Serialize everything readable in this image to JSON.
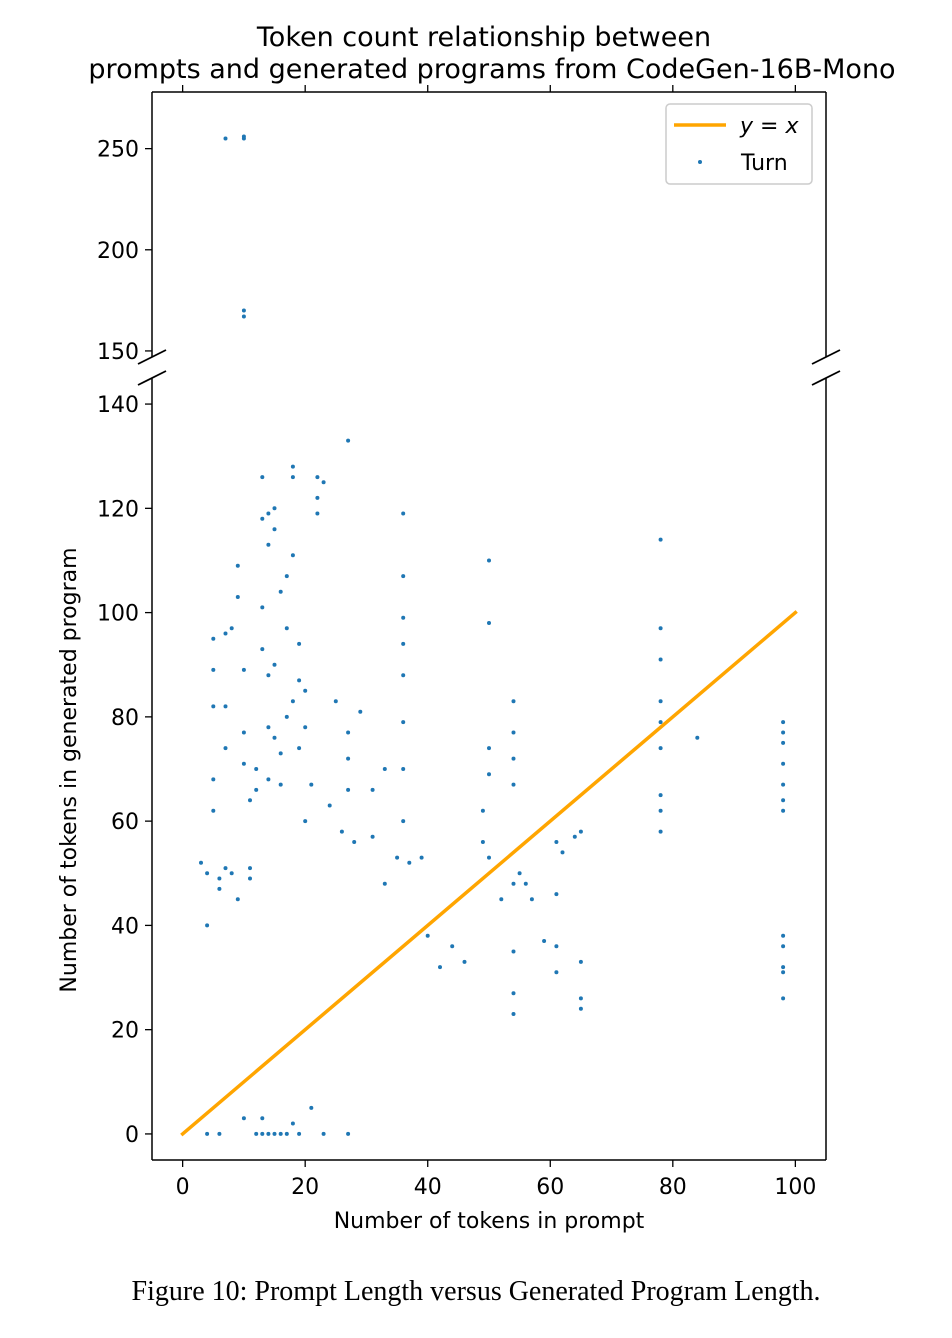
{
  "caption": "Figure 10: Prompt Length versus Generated Program Length.",
  "colors": {
    "scatter": "#1f77b4",
    "line": "#ffa500"
  },
  "chart_data": {
    "type": "scatter",
    "title_line1": "Token count relationship between",
    "title_line2": "prompts and generated programs from CodeGen-16B-Mono",
    "xlabel": "Number of tokens in prompt",
    "ylabel": "Number of tokens in generated program",
    "xlim": [
      -5,
      105
    ],
    "ylim_lower": [
      -5,
      145
    ],
    "ylim_upper": [
      147,
      278
    ],
    "broken_y_axis": true,
    "xticks": [
      0,
      20,
      40,
      60,
      80,
      100
    ],
    "yticks_lower": [
      0,
      20,
      40,
      60,
      80,
      100,
      120,
      140
    ],
    "yticks_upper": [
      150,
      200,
      250
    ],
    "legend": {
      "position": "top-right",
      "line_label": "y = x",
      "scatter_label": "Turn"
    },
    "line": {
      "name": "y = x",
      "x": [
        0,
        100
      ],
      "y": [
        0,
        100
      ]
    },
    "series": [
      {
        "name": "Turn",
        "points": [
          [
            7,
            255
          ],
          [
            10,
            256
          ],
          [
            10,
            255
          ],
          [
            10,
            170
          ],
          [
            10,
            167
          ],
          [
            3,
            52
          ],
          [
            4,
            40
          ],
          [
            4,
            50
          ],
          [
            5,
            62
          ],
          [
            5,
            95
          ],
          [
            5,
            89
          ],
          [
            5,
            82
          ],
          [
            5,
            68
          ],
          [
            6,
            49
          ],
          [
            6,
            47
          ],
          [
            7,
            51
          ],
          [
            7,
            96
          ],
          [
            7,
            82
          ],
          [
            7,
            74
          ],
          [
            8,
            97
          ],
          [
            8,
            50
          ],
          [
            9,
            45
          ],
          [
            9,
            109
          ],
          [
            9,
            103
          ],
          [
            10,
            89
          ],
          [
            10,
            77
          ],
          [
            10,
            71
          ],
          [
            11,
            64
          ],
          [
            11,
            51
          ],
          [
            11,
            49
          ],
          [
            12,
            70
          ],
          [
            12,
            66
          ],
          [
            13,
            126
          ],
          [
            13,
            118
          ],
          [
            13,
            101
          ],
          [
            13,
            93
          ],
          [
            14,
            119
          ],
          [
            14,
            113
          ],
          [
            14,
            88
          ],
          [
            14,
            78
          ],
          [
            14,
            68
          ],
          [
            15,
            120
          ],
          [
            15,
            116
          ],
          [
            15,
            90
          ],
          [
            15,
            76
          ],
          [
            16,
            104
          ],
          [
            16,
            73
          ],
          [
            16,
            67
          ],
          [
            17,
            107
          ],
          [
            17,
            97
          ],
          [
            17,
            80
          ],
          [
            18,
            128
          ],
          [
            18,
            126
          ],
          [
            18,
            111
          ],
          [
            18,
            83
          ],
          [
            19,
            74
          ],
          [
            19,
            94
          ],
          [
            19,
            87
          ],
          [
            20,
            85
          ],
          [
            20,
            78
          ],
          [
            20,
            60
          ],
          [
            21,
            67
          ],
          [
            22,
            126
          ],
          [
            22,
            122
          ],
          [
            22,
            119
          ],
          [
            23,
            125
          ],
          [
            24,
            63
          ],
          [
            25,
            83
          ],
          [
            26,
            58
          ],
          [
            27,
            133
          ],
          [
            27,
            77
          ],
          [
            27,
            72
          ],
          [
            27,
            66
          ],
          [
            28,
            56
          ],
          [
            29,
            81
          ],
          [
            31,
            66
          ],
          [
            31,
            57
          ],
          [
            33,
            70
          ],
          [
            33,
            48
          ],
          [
            35,
            53
          ],
          [
            36,
            119
          ],
          [
            36,
            107
          ],
          [
            36,
            99
          ],
          [
            36,
            94
          ],
          [
            36,
            88
          ],
          [
            36,
            79
          ],
          [
            36,
            70
          ],
          [
            36,
            60
          ],
          [
            37,
            52
          ],
          [
            39,
            53
          ],
          [
            40,
            38
          ],
          [
            42,
            32
          ],
          [
            44,
            36
          ],
          [
            46,
            33
          ],
          [
            49,
            56
          ],
          [
            49,
            62
          ],
          [
            50,
            110
          ],
          [
            50,
            98
          ],
          [
            50,
            74
          ],
          [
            50,
            69
          ],
          [
            50,
            53
          ],
          [
            52,
            45
          ],
          [
            54,
            83
          ],
          [
            54,
            77
          ],
          [
            54,
            72
          ],
          [
            54,
            67
          ],
          [
            54,
            48
          ],
          [
            54,
            35
          ],
          [
            54,
            27
          ],
          [
            54,
            23
          ],
          [
            55,
            50
          ],
          [
            56,
            48
          ],
          [
            57,
            45
          ],
          [
            59,
            37
          ],
          [
            61,
            56
          ],
          [
            61,
            46
          ],
          [
            61,
            36
          ],
          [
            61,
            31
          ],
          [
            62,
            54
          ],
          [
            64,
            57
          ],
          [
            65,
            58
          ],
          [
            65,
            33
          ],
          [
            65,
            26
          ],
          [
            65,
            24
          ],
          [
            78,
            114
          ],
          [
            78,
            97
          ],
          [
            78,
            91
          ],
          [
            78,
            83
          ],
          [
            78,
            79
          ],
          [
            78,
            74
          ],
          [
            78,
            65
          ],
          [
            78,
            62
          ],
          [
            78,
            58
          ],
          [
            84,
            76
          ],
          [
            98,
            79
          ],
          [
            98,
            77
          ],
          [
            98,
            75
          ],
          [
            98,
            71
          ],
          [
            98,
            67
          ],
          [
            98,
            64
          ],
          [
            98,
            62
          ],
          [
            98,
            38
          ],
          [
            98,
            36
          ],
          [
            98,
            32
          ],
          [
            98,
            31
          ],
          [
            98,
            26
          ],
          [
            12,
            0
          ],
          [
            13,
            0
          ],
          [
            14,
            0
          ],
          [
            15,
            0
          ],
          [
            16,
            0
          ],
          [
            17,
            0
          ],
          [
            19,
            0
          ],
          [
            23,
            0
          ],
          [
            27,
            0
          ],
          [
            4,
            0
          ],
          [
            6,
            0
          ],
          [
            13,
            3
          ],
          [
            18,
            2
          ],
          [
            21,
            5
          ],
          [
            10,
            3
          ]
        ]
      }
    ]
  }
}
